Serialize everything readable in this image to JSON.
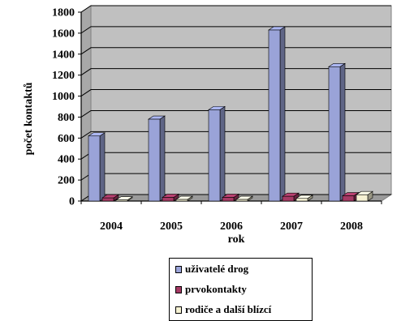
{
  "chart_data": {
    "type": "bar",
    "categories": [
      "2004",
      "2005",
      "2006",
      "2007",
      "2008"
    ],
    "series": [
      {
        "name": "uživatelé drog",
        "values": [
          620,
          780,
          870,
          1630,
          1280
        ],
        "color": "#9aa3d8"
      },
      {
        "name": "prvokontakty",
        "values": [
          30,
          35,
          35,
          45,
          50
        ],
        "color": "#a63a65"
      },
      {
        "name": "rodiče a další blízcí",
        "values": [
          10,
          15,
          15,
          25,
          60
        ],
        "color": "#f6f2d3"
      }
    ],
    "xlabel": "rok",
    "ylabel": "počet kontaktů",
    "ylim": [
      0,
      1800
    ],
    "yticks": [
      "0",
      "200",
      "400",
      "600",
      "800",
      "1000",
      "1200",
      "1400",
      "1600",
      "1800"
    ],
    "grid": true,
    "legend_position": "bottom",
    "wall_color": "#c0c0c0",
    "grid_color": "#000000"
  }
}
